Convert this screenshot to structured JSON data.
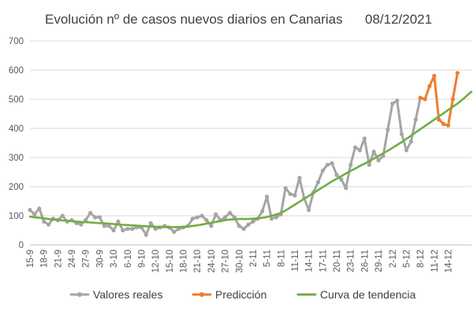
{
  "chart_data": {
    "type": "line",
    "title": "Evolución nº de casos nuevos diarios en Canarias",
    "date_label": "08/12/2021",
    "ylim": [
      0,
      700
    ],
    "yticks": [
      0,
      100,
      200,
      300,
      400,
      500,
      600,
      700
    ],
    "grid": true,
    "legend_position": "bottom",
    "x_tick_labels": [
      "15-9",
      "18-9",
      "21-9",
      "24-9",
      "27-9",
      "30-9",
      "3-10",
      "6-10",
      "9-10",
      "12-10",
      "15-10",
      "18-10",
      "21-10",
      "24-10",
      "27-10",
      "30-10",
      "2-11",
      "5-11",
      "8-11",
      "11-11",
      "14-11",
      "17-11",
      "20-11",
      "23-11",
      "26-11",
      "29-11",
      "2-12",
      "5-12",
      "8-12",
      "11-12",
      "14-12"
    ],
    "series": [
      {
        "name": "Valores reales",
        "color": "#a5a5a5",
        "start_index": 0,
        "values": [
          120,
          105,
          125,
          80,
          70,
          90,
          85,
          100,
          80,
          85,
          75,
          70,
          85,
          110,
          95,
          95,
          65,
          65,
          50,
          80,
          50,
          55,
          55,
          60,
          60,
          35,
          75,
          55,
          60,
          65,
          60,
          45,
          55,
          60,
          65,
          90,
          95,
          100,
          85,
          65,
          105,
          85,
          95,
          110,
          95,
          65,
          55,
          70,
          80,
          90,
          115,
          165,
          90,
          95,
          105,
          195,
          175,
          170,
          230,
          160,
          120,
          180,
          215,
          255,
          275,
          280,
          240,
          225,
          195,
          275,
          335,
          325,
          365,
          275,
          320,
          290,
          305,
          395,
          485,
          495,
          380,
          325,
          355,
          430,
          505
        ]
      },
      {
        "name": "Predicción",
        "color": "#ed7d31",
        "start_index": 84,
        "values": [
          505,
          500,
          545,
          580,
          430,
          415,
          410,
          500,
          590
        ]
      },
      {
        "name": "Curva de tendencia",
        "color": "#70ad47",
        "start_index": 0,
        "values": [
          97,
          95,
          93,
          91,
          89,
          87,
          86,
          84,
          83,
          82,
          80,
          79,
          78,
          77,
          76,
          75,
          74,
          73,
          72,
          70,
          69,
          68,
          67,
          66,
          65,
          64,
          63,
          62,
          62,
          61,
          61,
          61,
          61,
          62,
          63,
          65,
          67,
          70,
          73,
          76,
          79,
          82,
          85,
          87,
          88,
          89,
          89,
          89,
          90,
          91,
          93,
          96,
          100,
          104,
          110,
          118,
          128,
          138,
          148,
          158,
          168,
          178,
          188,
          198,
          208,
          218,
          227,
          236,
          245,
          254,
          262,
          271,
          279,
          287,
          296,
          305,
          314,
          323,
          333,
          343,
          353,
          364,
          375,
          386,
          397,
          408,
          419,
          430,
          441,
          452,
          463,
          474,
          485,
          498,
          512,
          526
        ]
      }
    ]
  }
}
